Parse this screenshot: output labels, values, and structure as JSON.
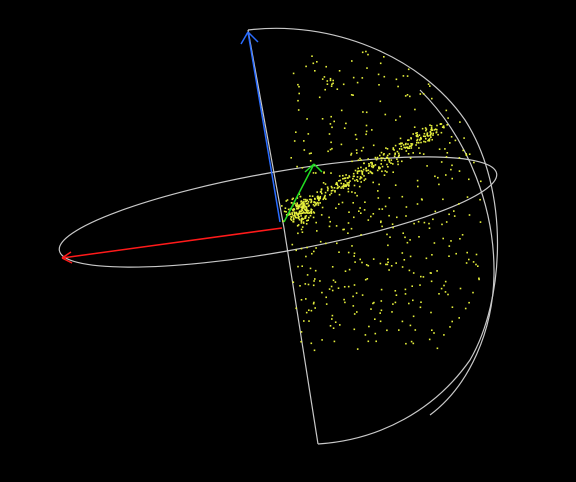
{
  "scene": {
    "background_color": "#000000",
    "wireframe_color": "#c8c8c8",
    "point_color": "#e6f03c",
    "point_count": 900,
    "axes": [
      {
        "name": "x-axis",
        "color": "#ff1a1a"
      },
      {
        "name": "y-axis",
        "color": "#22dd22"
      },
      {
        "name": "z-axis",
        "color": "#2a6cff"
      }
    ]
  }
}
